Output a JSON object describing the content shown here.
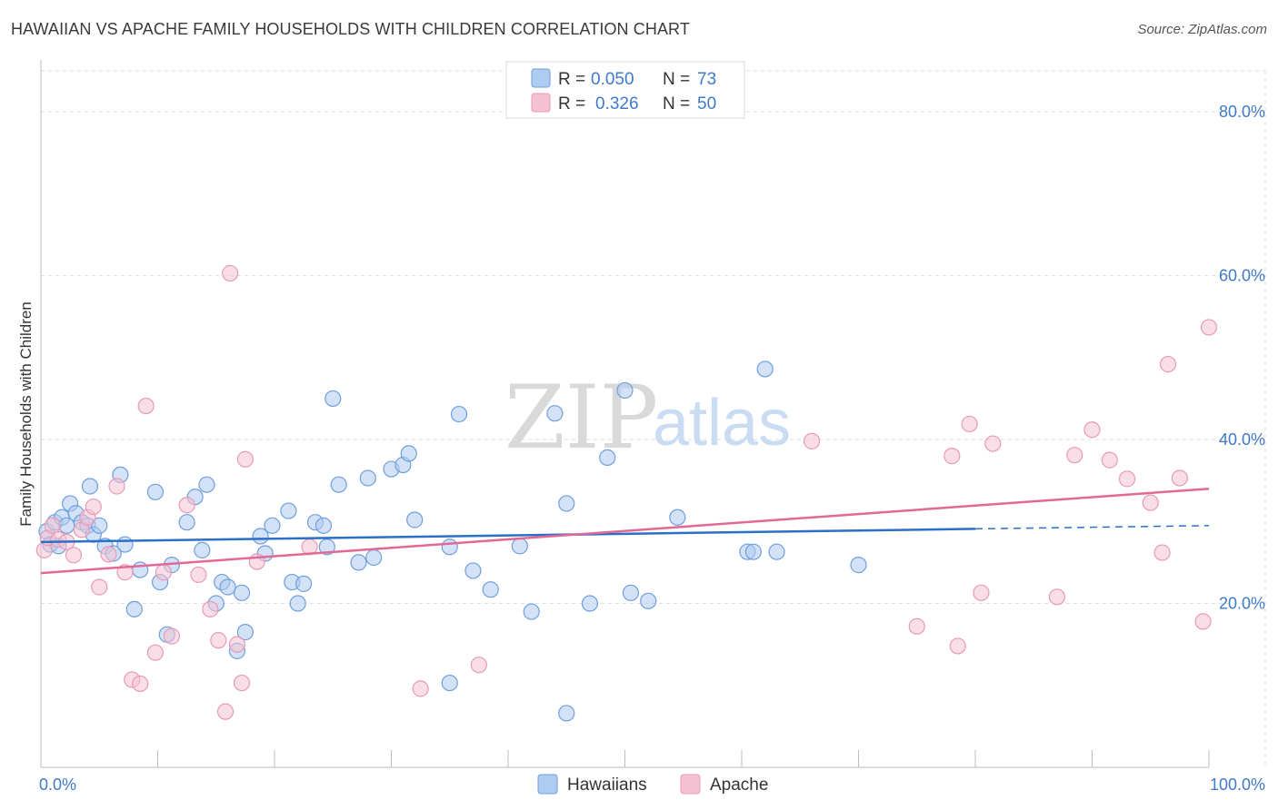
{
  "header": {
    "title": "HAWAIIAN VS APACHE FAMILY HOUSEHOLDS WITH CHILDREN CORRELATION CHART",
    "source": "Source: ZipAtlas.com"
  },
  "watermark": {
    "zip": "ZIP",
    "atlas": "atlas"
  },
  "colors": {
    "hawaiians_fill": "#aecbf0",
    "hawaiians_stroke": "#6f9fdc",
    "hawaiians_line": "#2b6fc9",
    "apache_fill": "#f6c2d3",
    "apache_stroke": "#e89ab4",
    "apache_line": "#e26896",
    "axis_label": "#3f7acb",
    "grid": "#dedede"
  },
  "legend": {
    "rows": [
      {
        "r_label": "R =",
        "r_value": "0.050",
        "n_label": "N =",
        "n_value": "73"
      },
      {
        "r_label": "R =",
        "r_value": "0.326",
        "n_label": "N =",
        "n_value": "50"
      }
    ]
  },
  "bottom_legend": {
    "items": [
      "Hawaiians",
      "Apache"
    ]
  },
  "chart_data": {
    "type": "scatter",
    "ylabel": "Family Households with Children",
    "xlim": [
      0,
      100
    ],
    "ylim": [
      0,
      85
    ],
    "x_tick_labels": [
      "0.0%",
      "100.0%"
    ],
    "y_ticks": [
      20,
      40,
      60,
      80
    ],
    "y_tick_labels": [
      "20.0%",
      "40.0%",
      "60.0%",
      "80.0%"
    ],
    "grid": true,
    "series": [
      {
        "name": "Hawaiians",
        "trend": {
          "x0": 0,
          "y0": 27.5,
          "x1": 80,
          "y1": 29.1,
          "dash_to_x": 100,
          "dash_to_y": 29.5
        },
        "points": [
          [
            0.5,
            28.8
          ],
          [
            0.8,
            27.2
          ],
          [
            1.2,
            29.9
          ],
          [
            1.8,
            30.5
          ],
          [
            2.2,
            29.5
          ],
          [
            2.5,
            32.2
          ],
          [
            3.0,
            31.0
          ],
          [
            3.5,
            29.9
          ],
          [
            4.0,
            29.5
          ],
          [
            4.5,
            28.4
          ],
          [
            4.2,
            34.3
          ],
          [
            5.0,
            29.5
          ],
          [
            5.5,
            27.0
          ],
          [
            6.2,
            26.1
          ],
          [
            6.8,
            35.7
          ],
          [
            7.2,
            27.2
          ],
          [
            8.5,
            24.1
          ],
          [
            9.8,
            33.6
          ],
          [
            10.2,
            22.6
          ],
          [
            10.8,
            16.2
          ],
          [
            11.2,
            24.7
          ],
          [
            12.5,
            29.9
          ],
          [
            13.2,
            33.0
          ],
          [
            13.8,
            26.5
          ],
          [
            14.2,
            34.5
          ],
          [
            15.0,
            20.0
          ],
          [
            15.5,
            22.6
          ],
          [
            16.0,
            22.0
          ],
          [
            16.8,
            14.2
          ],
          [
            17.2,
            21.3
          ],
          [
            17.5,
            16.5
          ],
          [
            18.8,
            28.2
          ],
          [
            19.2,
            26.1
          ],
          [
            19.8,
            29.5
          ],
          [
            21.2,
            31.3
          ],
          [
            21.5,
            22.6
          ],
          [
            22.0,
            20.0
          ],
          [
            22.5,
            22.4
          ],
          [
            23.5,
            29.9
          ],
          [
            24.2,
            29.5
          ],
          [
            24.5,
            26.9
          ],
          [
            25.0,
            45.0
          ],
          [
            25.5,
            34.5
          ],
          [
            27.2,
            25.0
          ],
          [
            28.0,
            35.3
          ],
          [
            28.5,
            25.6
          ],
          [
            30.0,
            36.4
          ],
          [
            31.0,
            36.9
          ],
          [
            31.5,
            38.3
          ],
          [
            35.0,
            10.3
          ],
          [
            32.0,
            30.2
          ],
          [
            35.8,
            43.1
          ],
          [
            35.0,
            26.9
          ],
          [
            37.0,
            24.0
          ],
          [
            38.5,
            21.7
          ],
          [
            41.0,
            27.0
          ],
          [
            42.0,
            19.0
          ],
          [
            44.0,
            43.2
          ],
          [
            45.0,
            32.2
          ],
          [
            47.0,
            20.0
          ],
          [
            48.5,
            37.8
          ],
          [
            50.0,
            46.0
          ],
          [
            50.5,
            21.3
          ],
          [
            52.0,
            20.3
          ],
          [
            54.5,
            30.5
          ],
          [
            60.5,
            26.3
          ],
          [
            62.0,
            48.6
          ],
          [
            61.0,
            26.3
          ],
          [
            63.0,
            26.3
          ],
          [
            70.0,
            24.7
          ],
          [
            45.0,
            6.6
          ],
          [
            8.0,
            19.3
          ],
          [
            1.5,
            27.0
          ]
        ]
      },
      {
        "name": "Apache",
        "trend": {
          "x0": 0,
          "y0": 23.7,
          "x1": 100,
          "y1": 34.0
        },
        "points": [
          [
            0.3,
            26.5
          ],
          [
            0.6,
            28.0
          ],
          [
            1.0,
            29.5
          ],
          [
            1.5,
            27.8
          ],
          [
            2.2,
            27.5
          ],
          [
            2.8,
            25.9
          ],
          [
            3.5,
            29.0
          ],
          [
            4.0,
            30.5
          ],
          [
            4.5,
            31.8
          ],
          [
            5.0,
            22.0
          ],
          [
            5.8,
            26.0
          ],
          [
            6.5,
            34.3
          ],
          [
            7.2,
            23.8
          ],
          [
            7.8,
            10.7
          ],
          [
            8.5,
            10.2
          ],
          [
            9.0,
            44.1
          ],
          [
            9.8,
            14.0
          ],
          [
            10.5,
            23.8
          ],
          [
            11.2,
            16.0
          ],
          [
            12.5,
            32.0
          ],
          [
            13.5,
            23.5
          ],
          [
            14.5,
            19.3
          ],
          [
            15.2,
            15.5
          ],
          [
            15.8,
            6.8
          ],
          [
            16.2,
            60.3
          ],
          [
            16.8,
            15.0
          ],
          [
            17.2,
            10.3
          ],
          [
            17.5,
            37.6
          ],
          [
            18.5,
            25.1
          ],
          [
            23.0,
            26.9
          ],
          [
            32.5,
            9.6
          ],
          [
            37.5,
            12.5
          ],
          [
            66.0,
            39.8
          ],
          [
            75.0,
            17.2
          ],
          [
            78.0,
            38.0
          ],
          [
            78.5,
            14.8
          ],
          [
            79.5,
            41.9
          ],
          [
            80.5,
            21.3
          ],
          [
            81.5,
            39.5
          ],
          [
            87.0,
            20.8
          ],
          [
            88.5,
            38.1
          ],
          [
            90.0,
            41.2
          ],
          [
            91.5,
            37.5
          ],
          [
            93.0,
            35.2
          ],
          [
            95.0,
            32.3
          ],
          [
            96.0,
            26.2
          ],
          [
            96.5,
            49.2
          ],
          [
            97.5,
            35.3
          ],
          [
            100.0,
            53.7
          ],
          [
            99.5,
            17.8
          ]
        ]
      }
    ]
  }
}
